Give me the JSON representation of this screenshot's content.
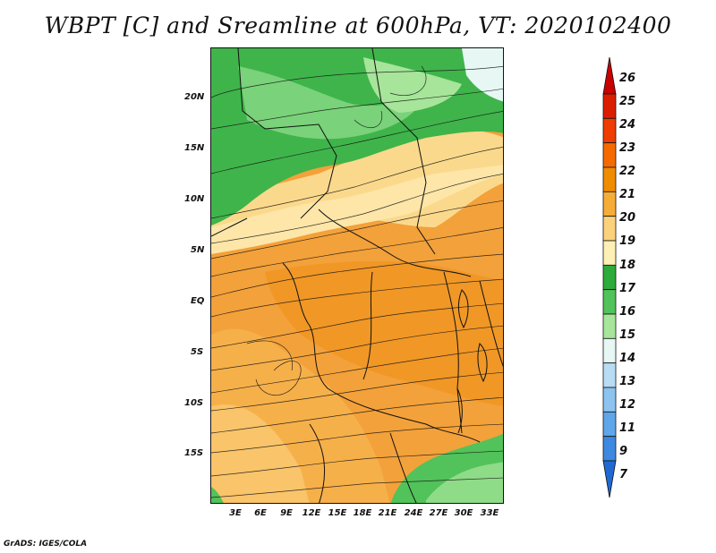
{
  "title": "WBPT [C] and Sreamline at 600hPa, VT: 2020102400",
  "credit": "GrADS: IGES/COLA",
  "map": {
    "latitude_labels": [
      "20N",
      "15N",
      "10N",
      "5N",
      "EQ",
      "5S",
      "10S",
      "15S"
    ],
    "longitude_labels": [
      "3E",
      "6E",
      "9E",
      "12E",
      "15E",
      "18E",
      "21E",
      "24E",
      "27E",
      "30E",
      "33E"
    ]
  },
  "colorbar": {
    "labels": [
      "26",
      "25",
      "24",
      "23",
      "22",
      "21",
      "20",
      "19",
      "18",
      "17",
      "16",
      "15",
      "14",
      "13",
      "12",
      "11",
      "9",
      "7"
    ],
    "colors": [
      "#c80000",
      "#dc1e00",
      "#ef3c00",
      "#f56a00",
      "#f08c00",
      "#f6ad38",
      "#fbd17c",
      "#fdf0b4",
      "#2dab3b",
      "#52c25a",
      "#a6e59a",
      "#e6f7f4",
      "#b9dcf5",
      "#8cc3ef",
      "#5fa6ea",
      "#3d88e0",
      "#1e6ad2"
    ]
  }
}
